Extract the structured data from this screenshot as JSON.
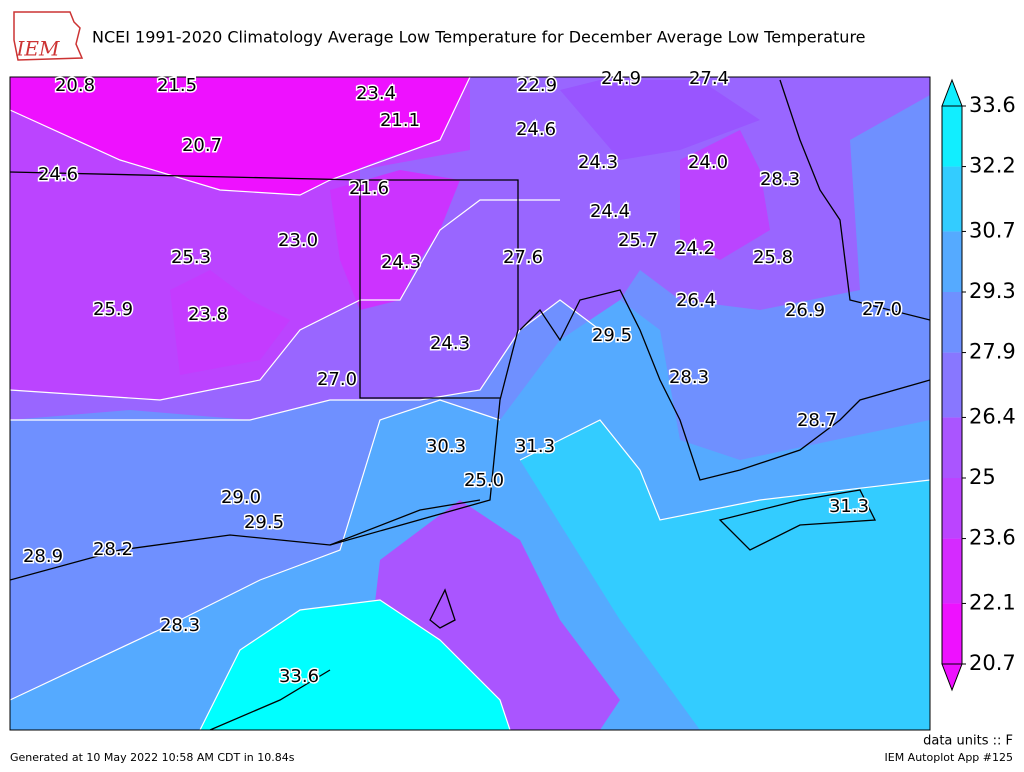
{
  "header": {
    "logo": "IEM",
    "title": "NCEI 1991-2020 Climatology Average Low Temperature for December Average Low Temperature"
  },
  "map": {
    "labels": [
      20.8,
      21.5,
      23.4,
      22.9,
      24.9,
      27.4,
      21.1,
      24.6,
      20.7,
      24.3,
      {
        "value": 24,
        "label": "24.0"
      },
      28.3,
      24.6,
      21.6,
      24.4,
      {
        "value": 23,
        "label": "23.0"
      },
      25.7,
      24.2,
      25.3,
      24.3,
      27.6,
      25.8,
      25.9,
      23.8,
      26.4,
      26.9,
      {
        "value": 27,
        "label": "27.0"
      },
      29.5,
      24.3,
      {
        "value": 27,
        "label": "27.0"
      },
      28.3,
      28.7,
      30.3,
      31.3,
      {
        "value": 25,
        "label": "25.0"
      },
      {
        "value": 29,
        "label": "29.0"
      },
      31.3,
      29.5,
      28.9,
      28.2,
      28.3,
      33.6
    ]
  },
  "colorbar": {
    "ticks": [
      20.7,
      22.1,
      23.6,
      25,
      26.4,
      27.9,
      29.3,
      30.7,
      32.2,
      33.6
    ],
    "colors": [
      "#ee11ff",
      "#d52aff",
      "#bb44ff",
      "#aa55ff",
      "#8877ff",
      "#6f90ff",
      "#55aaff",
      "#33ccff",
      "#11eeff"
    ],
    "units": "data units :: F"
  },
  "footer": {
    "generated": "Generated at 10 May 2022 10:58 AM CDT in 10.84s",
    "app": "IEM Autoplot App #125"
  }
}
